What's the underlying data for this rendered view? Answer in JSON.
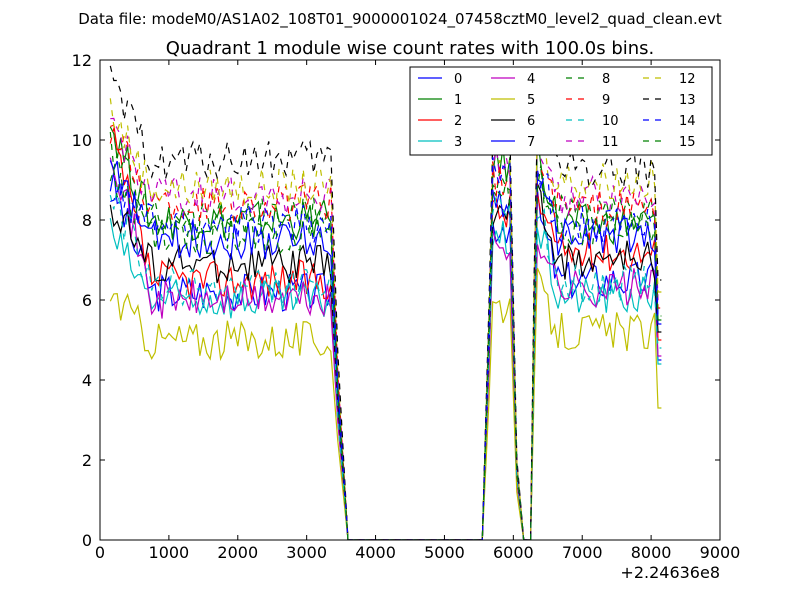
{
  "figure": {
    "suptitle": "Data file: modeM0/AS1A02_108T01_9000001024_07458cztM0_level2_quad_clean.evt"
  },
  "chart_data": {
    "type": "line",
    "title": "Quadrant 1 module wise count rates with 100.0s bins.",
    "xlabel": "",
    "ylabel": "",
    "x_offset_label": "+2.24636e8",
    "xlim": [
      0,
      9000
    ],
    "ylim": [
      0,
      12
    ],
    "xticks": [
      0,
      1000,
      2000,
      3000,
      4000,
      5000,
      6000,
      7000,
      8000,
      9000
    ],
    "yticks": [
      0,
      2,
      4,
      6,
      8,
      10,
      12
    ],
    "grid": false,
    "legend_position": "top-right",
    "legend_columns": 4,
    "segments": [
      {
        "x_start": 150,
        "x_end": 3350,
        "step": 50
      },
      {
        "x_start": 5700,
        "x_end": 5950,
        "step": 50
      },
      {
        "x_start": 6350,
        "x_end": 8150,
        "step": 50
      }
    ],
    "gaps": [
      [
        3350,
        3600
      ],
      [
        5550,
        5700
      ],
      [
        5950,
        6050
      ],
      [
        6150,
        6350
      ]
    ],
    "series": [
      {
        "name": "0",
        "color": "#0000ff",
        "dash": "solid",
        "start": 9.0,
        "plateau1": 6.2,
        "peak2": 8.0,
        "plateau3": 6.5,
        "end": 4.5
      },
      {
        "name": "1",
        "color": "#008000",
        "dash": "solid",
        "start": 10.4,
        "plateau1": 8.0,
        "peak2": 9.5,
        "plateau3": 7.9,
        "end": 5.5
      },
      {
        "name": "2",
        "color": "#ff0000",
        "dash": "solid",
        "start": 10.2,
        "plateau1": 6.5,
        "peak2": 8.3,
        "plateau3": 7.2,
        "end": 5.0
      },
      {
        "name": "3",
        "color": "#00bfbf",
        "dash": "solid",
        "start": 7.7,
        "plateau1": 6.0,
        "peak2": 7.6,
        "plateau3": 6.1,
        "end": 4.4
      },
      {
        "name": "4",
        "color": "#bf00bf",
        "dash": "solid",
        "start": 10.0,
        "plateau1": 6.0,
        "peak2": 7.4,
        "plateau3": 6.3,
        "end": 4.6
      },
      {
        "name": "5",
        "color": "#bfbf00",
        "dash": "solid",
        "start": 6.2,
        "plateau1": 5.0,
        "peak2": 6.0,
        "plateau3": 5.2,
        "end": 3.3
      },
      {
        "name": "6",
        "color": "#000000",
        "dash": "solid",
        "start": 8.4,
        "plateau1": 6.9,
        "peak2": 8.3,
        "plateau3": 7.0,
        "end": 5.2
      },
      {
        "name": "7",
        "color": "#0000ff",
        "dash": "solid",
        "start": 9.3,
        "plateau1": 7.5,
        "peak2": 8.6,
        "plateau3": 7.6,
        "end": 5.4
      },
      {
        "name": "8",
        "color": "#008000",
        "dash": "dashed",
        "start": 9.8,
        "plateau1": 8.1,
        "peak2": 9.0,
        "plateau3": 8.1,
        "end": 5.6
      },
      {
        "name": "9",
        "color": "#ff0000",
        "dash": "dashed",
        "start": 10.3,
        "plateau1": 8.4,
        "peak2": 9.1,
        "plateau3": 8.3,
        "end": 5.8
      },
      {
        "name": "10",
        "color": "#00bfbf",
        "dash": "dashed",
        "start": 8.8,
        "plateau1": 6.3,
        "peak2": 8.2,
        "plateau3": 6.4,
        "end": 4.8
      },
      {
        "name": "11",
        "color": "#bf00bf",
        "dash": "dashed",
        "start": 10.5,
        "plateau1": 8.6,
        "peak2": 9.6,
        "plateau3": 8.6,
        "end": 6.0
      },
      {
        "name": "12",
        "color": "#bfbf00",
        "dash": "dashed",
        "start": 10.8,
        "plateau1": 8.8,
        "peak2": 9.9,
        "plateau3": 9.0,
        "end": 6.2
      },
      {
        "name": "13",
        "color": "#000000",
        "dash": "dashed",
        "start": 11.4,
        "plateau1": 9.5,
        "peak2": 10.2,
        "plateau3": 9.3,
        "end": 6.5
      },
      {
        "name": "14",
        "color": "#0000ff",
        "dash": "dashed",
        "start": 8.8,
        "plateau1": 7.9,
        "peak2": 9.2,
        "plateau3": 7.9,
        "end": 5.6
      },
      {
        "name": "15",
        "color": "#008000",
        "dash": "dashed",
        "start": 9.1,
        "plateau1": 7.6,
        "peak2": 8.9,
        "plateau3": 7.7,
        "end": 5.5
      }
    ]
  }
}
